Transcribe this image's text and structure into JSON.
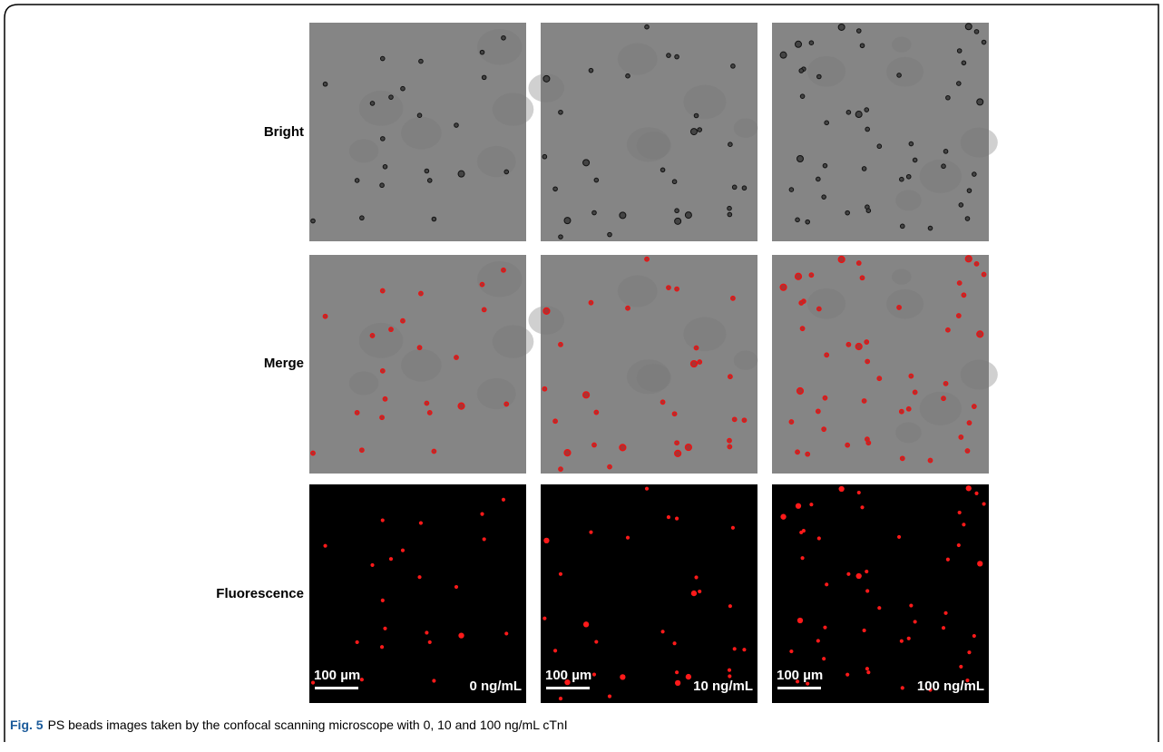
{
  "figure": {
    "row_labels": [
      "Bright",
      "Merge",
      "Fluorescence"
    ],
    "scale_bar_labels": [
      "100 µm",
      "100 µm",
      "100 µm"
    ],
    "concentration_labels": [
      "0 ng/mL",
      "10 ng/mL",
      "100 ng/mL"
    ],
    "caption": {
      "label": "Fig. 5",
      "text": "PS beads images taken by the confocal scanning microscope with 0, 10 and 100 ng/mL cTnI"
    }
  }
}
